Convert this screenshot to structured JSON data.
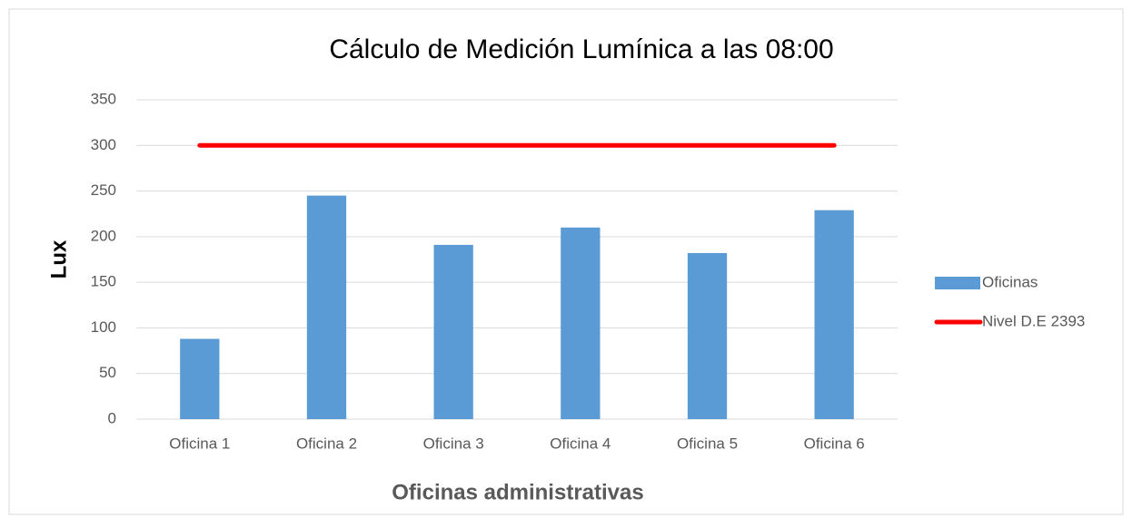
{
  "chart_data": {
    "type": "bar",
    "title": "Cálculo de Medición Lumínica a las 08:00",
    "x_label": "Oficinas administrativas",
    "y_label": "Lux",
    "categories": [
      "Oficina 1",
      "Oficina 2",
      "Oficina 3",
      "Oficina 4",
      "Oficina 5",
      "Oficina 6"
    ],
    "series": [
      {
        "name": "Oficinas",
        "type": "bar",
        "color": "#5b9bd5",
        "values": [
          88,
          245,
          191,
          210,
          182,
          229
        ]
      },
      {
        "name": "Nivel D.E 2393",
        "type": "line",
        "color": "#ff0000",
        "values": [
          300,
          300,
          300,
          300,
          300,
          300
        ]
      }
    ],
    "ylim": [
      0,
      350
    ],
    "yticks": [
      0,
      50,
      100,
      150,
      200,
      250,
      300,
      350
    ],
    "grid": true,
    "legend": "right"
  }
}
